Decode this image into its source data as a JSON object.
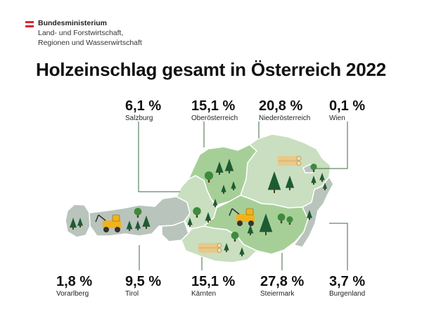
{
  "ministry": {
    "line1": "Bundesministerium",
    "line2": "Land- und Forstwirtschaft,",
    "line3": "Regionen und Wasserwirtschaft"
  },
  "title": "Holzeinschlag gesamt in Österreich 2022",
  "colors": {
    "land_light": "#c9dfc0",
    "land_medium": "#a6cf98",
    "land_grey": "#b9c4bd",
    "tree_dark": "#1d5c32",
    "tree_light": "#3f8a3c",
    "machine": "#f2b21b",
    "logs": "#e8c98a",
    "leader": "#3c6b43"
  },
  "regions": [
    {
      "id": "salzburg",
      "share": "6,1 %",
      "name": "Salzburg"
    },
    {
      "id": "oberoesterreich",
      "share": "15,1 %",
      "name": "Oberösterreich"
    },
    {
      "id": "niederoesterreich",
      "share": "20,8 %",
      "name": "Niederösterreich"
    },
    {
      "id": "wien",
      "share": "0,1 %",
      "name": "Wien"
    },
    {
      "id": "vorarlberg",
      "share": "1,8 %",
      "name": "Vorarlberg"
    },
    {
      "id": "tirol",
      "share": "9,5 %",
      "name": "Tirol"
    },
    {
      "id": "kaernten",
      "share": "15,1 %",
      "name": "Kärnten"
    },
    {
      "id": "steiermark",
      "share": "27,8 %",
      "name": "Steiermark"
    },
    {
      "id": "burgenland",
      "share": "3,7 %",
      "name": "Burgenland"
    }
  ],
  "icons": [
    "tree-icon",
    "deciduous-tree-icon",
    "harvester-icon",
    "log-pile-icon",
    "austrian-flag-icon"
  ]
}
